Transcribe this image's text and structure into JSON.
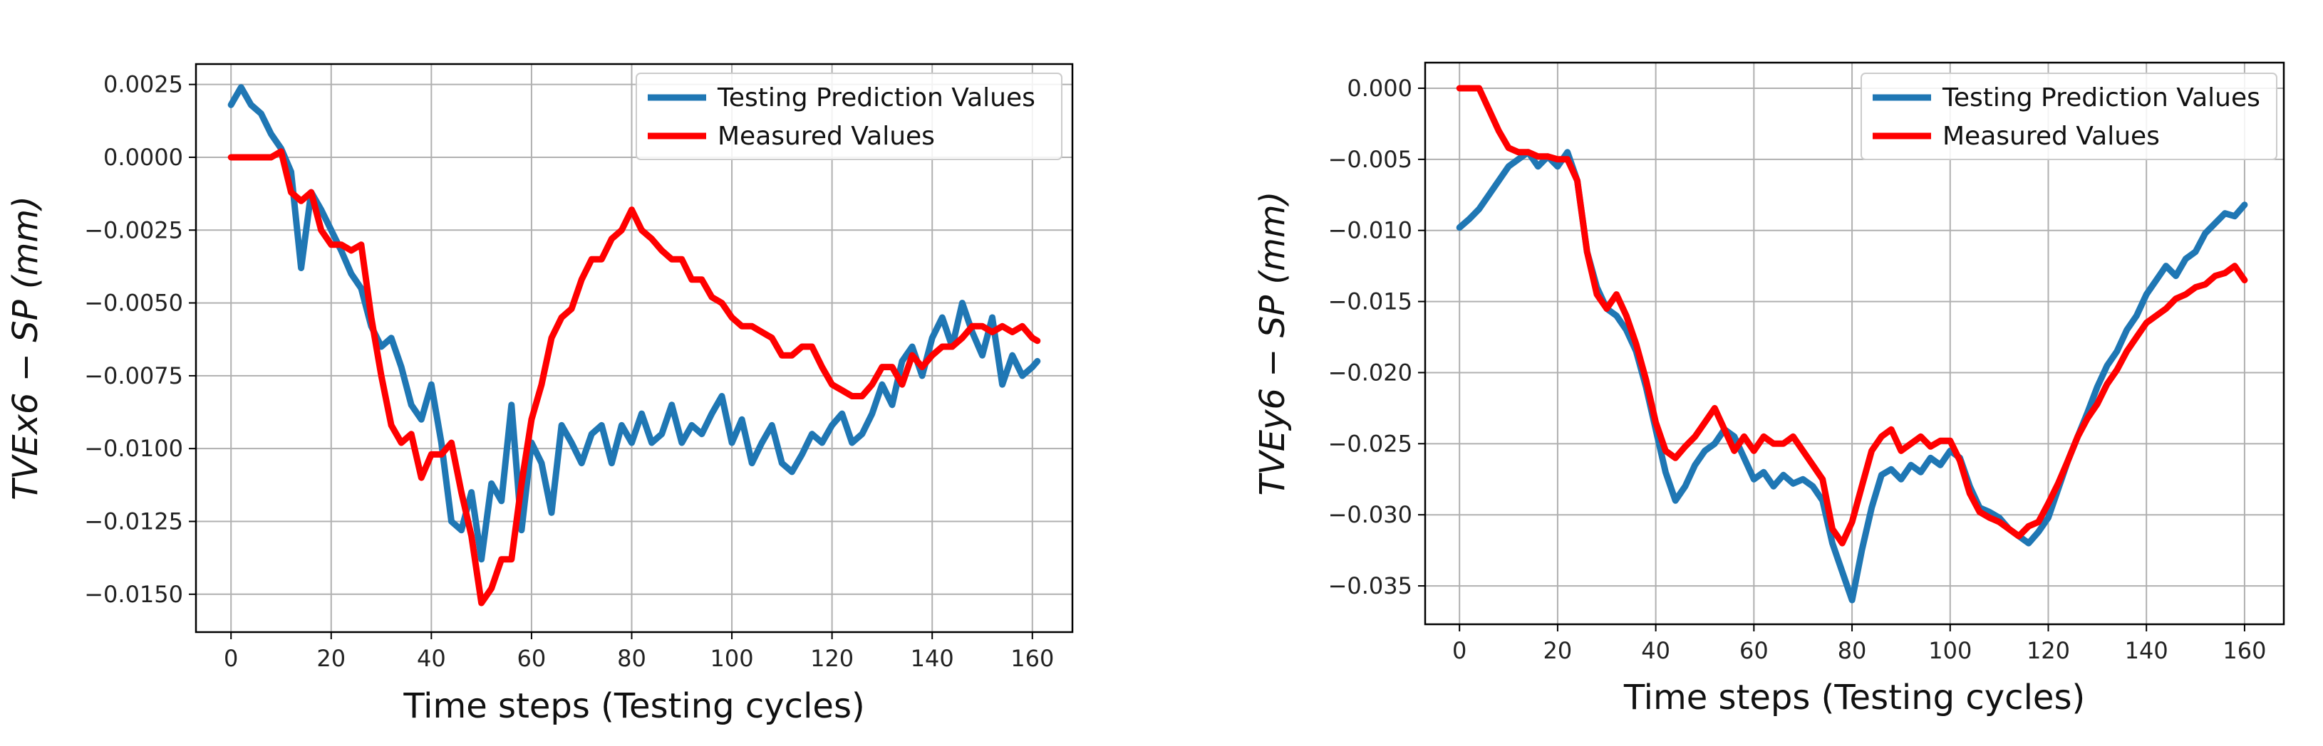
{
  "chart_data": [
    {
      "type": "line",
      "xlabel": "Time steps (Testing cycles)",
      "ylabel": "TVEx6 − SP (mm)",
      "xlim": [
        -7,
        168
      ],
      "ylim": [
        -0.0163,
        0.0032
      ],
      "xticks": [
        0,
        20,
        40,
        60,
        80,
        100,
        120,
        140,
        160
      ],
      "xtick_labels": [
        "0",
        "20",
        "40",
        "60",
        "80",
        "100",
        "120",
        "140",
        "160"
      ],
      "yticks": [
        0.0025,
        0.0,
        -0.0025,
        -0.005,
        -0.0075,
        -0.01,
        -0.0125,
        -0.015
      ],
      "ytick_labels": [
        "0.0025",
        "0.0000",
        "−0.0025",
        "−0.0050",
        "−0.0075",
        "−0.0100",
        "−0.0125",
        "−0.0150"
      ],
      "legend_position": "top-right",
      "grid": true,
      "series": [
        {
          "name": "Testing Prediction Values",
          "color": "#1f77b4",
          "x": [
            0,
            2,
            4,
            6,
            8,
            10,
            12,
            14,
            16,
            18,
            20,
            22,
            24,
            26,
            28,
            30,
            32,
            34,
            36,
            38,
            40,
            42,
            44,
            46,
            48,
            50,
            52,
            54,
            56,
            58,
            60,
            62,
            64,
            66,
            68,
            70,
            72,
            74,
            76,
            78,
            80,
            82,
            84,
            86,
            88,
            90,
            92,
            94,
            96,
            98,
            100,
            102,
            104,
            106,
            108,
            110,
            112,
            114,
            116,
            118,
            120,
            122,
            124,
            126,
            128,
            130,
            132,
            134,
            136,
            138,
            140,
            142,
            144,
            146,
            148,
            150,
            152,
            154,
            156,
            158,
            160,
            161
          ],
          "y": [
            0.0018,
            0.0024,
            0.0018,
            0.0015,
            0.0008,
            0.0003,
            -0.0005,
            -0.0038,
            -0.0012,
            -0.0018,
            -0.0025,
            -0.0032,
            -0.004,
            -0.0045,
            -0.0058,
            -0.0065,
            -0.0062,
            -0.0072,
            -0.0085,
            -0.009,
            -0.0078,
            -0.0098,
            -0.0125,
            -0.0128,
            -0.0115,
            -0.0138,
            -0.0112,
            -0.0118,
            -0.0085,
            -0.0128,
            -0.0098,
            -0.0105,
            -0.0122,
            -0.0092,
            -0.0098,
            -0.0105,
            -0.0095,
            -0.0092,
            -0.0105,
            -0.0092,
            -0.0098,
            -0.0088,
            -0.0098,
            -0.0095,
            -0.0085,
            -0.0098,
            -0.0092,
            -0.0095,
            -0.0088,
            -0.0082,
            -0.0098,
            -0.009,
            -0.0105,
            -0.0098,
            -0.0092,
            -0.0105,
            -0.0108,
            -0.0102,
            -0.0095,
            -0.0098,
            -0.0092,
            -0.0088,
            -0.0098,
            -0.0095,
            -0.0088,
            -0.0078,
            -0.0085,
            -0.007,
            -0.0065,
            -0.0075,
            -0.0062,
            -0.0055,
            -0.0065,
            -0.005,
            -0.006,
            -0.0068,
            -0.0055,
            -0.0078,
            -0.0068,
            -0.0075,
            -0.0072,
            -0.007
          ]
        },
        {
          "name": "Measured Values",
          "color": "#ff0000",
          "x": [
            0,
            2,
            4,
            6,
            8,
            10,
            12,
            14,
            16,
            18,
            20,
            22,
            24,
            26,
            28,
            30,
            32,
            34,
            36,
            38,
            40,
            42,
            44,
            46,
            48,
            50,
            52,
            54,
            56,
            58,
            60,
            62,
            64,
            66,
            68,
            70,
            72,
            74,
            76,
            78,
            80,
            82,
            84,
            86,
            88,
            90,
            92,
            94,
            96,
            98,
            100,
            102,
            104,
            106,
            108,
            110,
            112,
            114,
            116,
            118,
            120,
            122,
            124,
            126,
            128,
            130,
            132,
            134,
            136,
            138,
            140,
            142,
            144,
            146,
            148,
            150,
            152,
            154,
            156,
            158,
            160,
            161
          ],
          "y": [
            0.0,
            0.0,
            0.0,
            0.0,
            0.0,
            0.0002,
            -0.0012,
            -0.0015,
            -0.0012,
            -0.0025,
            -0.003,
            -0.003,
            -0.0032,
            -0.003,
            -0.0055,
            -0.0075,
            -0.0092,
            -0.0098,
            -0.0095,
            -0.011,
            -0.0102,
            -0.0102,
            -0.0098,
            -0.0115,
            -0.013,
            -0.0153,
            -0.0148,
            -0.0138,
            -0.0138,
            -0.0112,
            -0.009,
            -0.0078,
            -0.0062,
            -0.0055,
            -0.0052,
            -0.0042,
            -0.0035,
            -0.0035,
            -0.0028,
            -0.0025,
            -0.0018,
            -0.0025,
            -0.0028,
            -0.0032,
            -0.0035,
            -0.0035,
            -0.0042,
            -0.0042,
            -0.0048,
            -0.005,
            -0.0055,
            -0.0058,
            -0.0058,
            -0.006,
            -0.0062,
            -0.0068,
            -0.0068,
            -0.0065,
            -0.0065,
            -0.0072,
            -0.0078,
            -0.008,
            -0.0082,
            -0.0082,
            -0.0078,
            -0.0072,
            -0.0072,
            -0.0078,
            -0.0068,
            -0.0072,
            -0.0068,
            -0.0065,
            -0.0065,
            -0.0062,
            -0.0058,
            -0.0058,
            -0.006,
            -0.0058,
            -0.006,
            -0.0058,
            -0.0062,
            -0.0063
          ]
        }
      ]
    },
    {
      "type": "line",
      "xlabel": "Time steps (Testing cycles)",
      "ylabel": "TVEy6 − SP (mm)",
      "xlim": [
        -7,
        168
      ],
      "ylim": [
        -0.0377,
        0.0018
      ],
      "xticks": [
        0,
        20,
        40,
        60,
        80,
        100,
        120,
        140,
        160
      ],
      "xtick_labels": [
        "0",
        "20",
        "40",
        "60",
        "80",
        "100",
        "120",
        "140",
        "160"
      ],
      "yticks": [
        0.0,
        -0.005,
        -0.01,
        -0.015,
        -0.02,
        -0.025,
        -0.03,
        -0.035
      ],
      "ytick_labels": [
        "0.000",
        "−0.005",
        "−0.010",
        "−0.015",
        "−0.020",
        "−0.025",
        "−0.030",
        "−0.035"
      ],
      "legend_position": "top-right",
      "grid": true,
      "series": [
        {
          "name": "Testing Prediction Values",
          "color": "#1f77b4",
          "x": [
            0,
            2,
            4,
            6,
            8,
            10,
            12,
            14,
            16,
            18,
            20,
            22,
            24,
            26,
            28,
            30,
            32,
            34,
            36,
            38,
            40,
            42,
            44,
            46,
            48,
            50,
            52,
            54,
            56,
            58,
            60,
            62,
            64,
            66,
            68,
            70,
            72,
            74,
            76,
            78,
            80,
            82,
            84,
            86,
            88,
            90,
            92,
            94,
            96,
            98,
            100,
            102,
            104,
            106,
            108,
            110,
            112,
            114,
            116,
            118,
            120,
            122,
            124,
            126,
            128,
            130,
            132,
            134,
            136,
            138,
            140,
            142,
            144,
            146,
            148,
            150,
            152,
            154,
            156,
            158,
            160
          ],
          "y": [
            -0.0098,
            -0.0092,
            -0.0085,
            -0.0075,
            -0.0065,
            -0.0055,
            -0.005,
            -0.0045,
            -0.0055,
            -0.0048,
            -0.0055,
            -0.0045,
            -0.0065,
            -0.0115,
            -0.014,
            -0.0155,
            -0.016,
            -0.017,
            -0.0185,
            -0.021,
            -0.024,
            -0.027,
            -0.029,
            -0.028,
            -0.0265,
            -0.0255,
            -0.025,
            -0.024,
            -0.0245,
            -0.026,
            -0.0275,
            -0.027,
            -0.028,
            -0.0272,
            -0.0278,
            -0.0275,
            -0.028,
            -0.029,
            -0.032,
            -0.034,
            -0.036,
            -0.0325,
            -0.0295,
            -0.0272,
            -0.0268,
            -0.0275,
            -0.0265,
            -0.027,
            -0.026,
            -0.0265,
            -0.0255,
            -0.026,
            -0.028,
            -0.0295,
            -0.0298,
            -0.0302,
            -0.031,
            -0.0315,
            -0.032,
            -0.0312,
            -0.0302,
            -0.0282,
            -0.0262,
            -0.0245,
            -0.0228,
            -0.021,
            -0.0195,
            -0.0185,
            -0.017,
            -0.016,
            -0.0145,
            -0.0135,
            -0.0125,
            -0.0132,
            -0.012,
            -0.0115,
            -0.0102,
            -0.0095,
            -0.0088,
            -0.009,
            -0.0082
          ]
        },
        {
          "name": "Measured Values",
          "color": "#ff0000",
          "x": [
            0,
            2,
            4,
            6,
            8,
            10,
            12,
            14,
            16,
            18,
            20,
            22,
            24,
            26,
            28,
            30,
            32,
            34,
            36,
            38,
            40,
            42,
            44,
            46,
            48,
            50,
            52,
            54,
            56,
            58,
            60,
            62,
            64,
            66,
            68,
            70,
            72,
            74,
            76,
            78,
            80,
            82,
            84,
            86,
            88,
            90,
            92,
            94,
            96,
            98,
            100,
            102,
            104,
            106,
            108,
            110,
            112,
            114,
            116,
            118,
            120,
            122,
            124,
            126,
            128,
            130,
            132,
            134,
            136,
            138,
            140,
            142,
            144,
            146,
            148,
            150,
            152,
            154,
            156,
            158,
            160
          ],
          "y": [
            0.0,
            0.0,
            0.0,
            -0.0015,
            -0.003,
            -0.0042,
            -0.0045,
            -0.0045,
            -0.0048,
            -0.0048,
            -0.005,
            -0.005,
            -0.0065,
            -0.0115,
            -0.0145,
            -0.0155,
            -0.0145,
            -0.016,
            -0.018,
            -0.0205,
            -0.0235,
            -0.0255,
            -0.026,
            -0.0252,
            -0.0245,
            -0.0235,
            -0.0225,
            -0.024,
            -0.0255,
            -0.0245,
            -0.0255,
            -0.0245,
            -0.025,
            -0.025,
            -0.0245,
            -0.0255,
            -0.0265,
            -0.0275,
            -0.031,
            -0.032,
            -0.0305,
            -0.028,
            -0.0255,
            -0.0245,
            -0.024,
            -0.0255,
            -0.025,
            -0.0245,
            -0.0252,
            -0.0248,
            -0.0248,
            -0.0262,
            -0.0285,
            -0.0298,
            -0.0302,
            -0.0305,
            -0.031,
            -0.0315,
            -0.0308,
            -0.0305,
            -0.0292,
            -0.0278,
            -0.0262,
            -0.0245,
            -0.0232,
            -0.0222,
            -0.0208,
            -0.0198,
            -0.0185,
            -0.0175,
            -0.0165,
            -0.016,
            -0.0155,
            -0.0148,
            -0.0145,
            -0.014,
            -0.0138,
            -0.0132,
            -0.013,
            -0.0125,
            -0.0135
          ]
        }
      ]
    }
  ]
}
